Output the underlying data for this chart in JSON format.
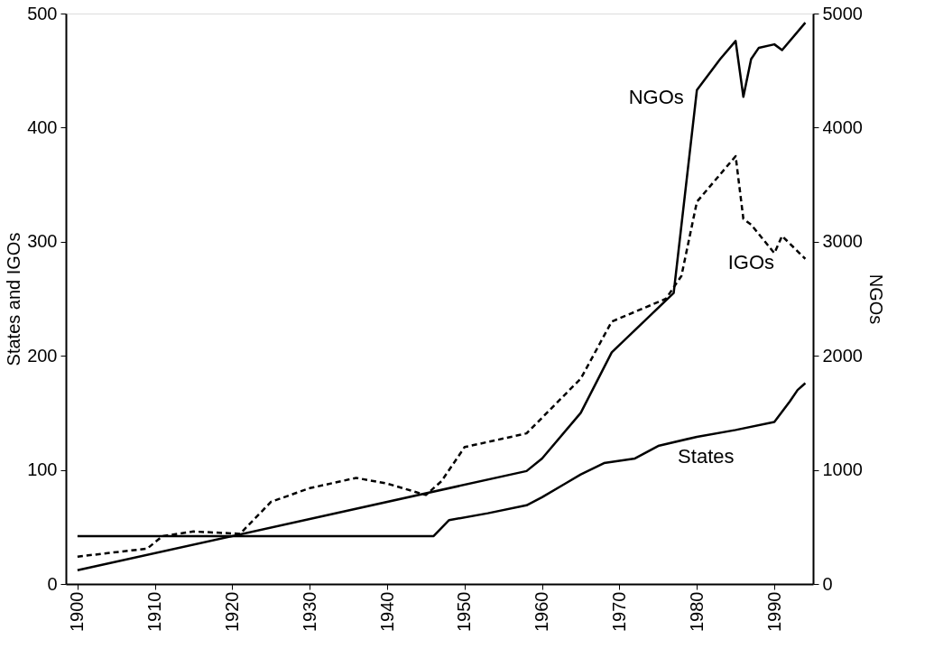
{
  "chart_data": {
    "type": "line",
    "ylabel": "States and IGOs",
    "y2label": "NGOs",
    "xlim": [
      1898.5,
      1995
    ],
    "xticks": [
      1900,
      1910,
      1920,
      1930,
      1940,
      1950,
      1960,
      1970,
      1980,
      1990
    ],
    "ylim": [
      0,
      500
    ],
    "yticks": [
      0,
      100,
      200,
      300,
      400,
      500
    ],
    "y2lim": [
      0,
      5000
    ],
    "y2ticks": [
      0,
      1000,
      2000,
      3000,
      4000,
      5000
    ],
    "grid": false,
    "marker": "none",
    "series": [
      {
        "name": "States",
        "color": "#000000",
        "line_style": "solid",
        "x": [
          1900,
          1946,
          1948,
          1953,
          1958,
          1960,
          1963,
          1965,
          1968,
          1972,
          1975,
          1980,
          1985,
          1990,
          1992,
          1993,
          1994
        ],
        "values": [
          42,
          42,
          56,
          62,
          69,
          76,
          88,
          96,
          106,
          110,
          121,
          129,
          135,
          142,
          160,
          170,
          176
        ]
      },
      {
        "name": "IGOs",
        "color": "#000000",
        "line_style": "dashed",
        "x": [
          1900,
          1909,
          1911,
          1915,
          1921,
          1925,
          1930,
          1936,
          1940,
          1945,
          1947,
          1950,
          1958,
          1965,
          1969,
          1976,
          1978,
          1980,
          1985,
          1986,
          1987,
          1990,
          1991,
          1994
        ],
        "values": [
          24,
          31,
          42,
          46,
          44,
          72,
          84,
          93,
          88,
          78,
          90,
          120,
          132,
          180,
          230,
          250,
          270,
          335,
          375,
          320,
          315,
          290,
          305,
          285
        ]
      },
      {
        "name": "NGOs",
        "color": "#000000",
        "line_style": "solid",
        "axis": "y2",
        "x": [
          1900,
          1958,
          1960,
          1965,
          1969,
          1977,
          1980,
          1983,
          1985,
          1986,
          1987,
          1988,
          1990,
          1991,
          1994
        ],
        "values": [
          120,
          990,
          1100,
          1500,
          2030,
          2550,
          4330,
          4600,
          4760,
          4270,
          4600,
          4700,
          4730,
          4680,
          4920
        ]
      }
    ]
  }
}
